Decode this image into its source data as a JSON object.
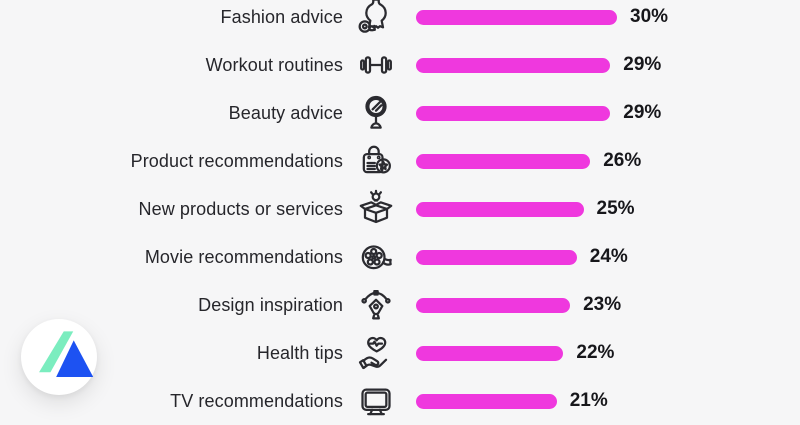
{
  "background_color": "#f6f6f7",
  "chart_data": {
    "type": "bar",
    "orientation": "horizontal",
    "title": "",
    "categories": [
      "Fashion advice",
      "Workout routines",
      "Beauty advice",
      "Product recommendations",
      "New products or services",
      "Movie recommendations",
      "Design inspiration",
      "Health tips",
      "TV recommendations"
    ],
    "values": [
      30,
      29,
      29,
      26,
      25,
      24,
      23,
      22,
      21
    ],
    "value_labels": [
      "30%",
      "29%",
      "29%",
      "26%",
      "25%",
      "24%",
      "23%",
      "22%",
      "21%"
    ],
    "unit": "%",
    "xlim": [
      0,
      30
    ],
    "grid": false,
    "legend": false,
    "bar_color": "#ef38de",
    "category_label_color": "#26262b",
    "value_label_color": "#17171b"
  },
  "rows": [
    {
      "label": "Fashion advice",
      "value": 30,
      "pct": "30%",
      "icon": "dress-form"
    },
    {
      "label": "Workout routines",
      "value": 29,
      "pct": "29%",
      "icon": "dumbbell"
    },
    {
      "label": "Beauty advice",
      "value": 29,
      "pct": "29%",
      "icon": "mirror"
    },
    {
      "label": "Product recommendations",
      "value": 26,
      "pct": "26%",
      "icon": "shopping-bag-star"
    },
    {
      "label": "New products or services",
      "value": 25,
      "pct": "25%",
      "icon": "box-lightbulb"
    },
    {
      "label": "Movie recommendations",
      "value": 24,
      "pct": "24%",
      "icon": "film-reel"
    },
    {
      "label": "Design inspiration",
      "value": 23,
      "pct": "23%",
      "icon": "pen-tool"
    },
    {
      "label": "Health tips",
      "value": 22,
      "pct": "22%",
      "icon": "hand-heart"
    },
    {
      "label": "TV recommendations",
      "value": 21,
      "pct": "21%",
      "icon": "tv"
    }
  ],
  "logo": {
    "name": "bdm-logo",
    "circle_color": "#ffffff",
    "triangle_green": "#7bedbf",
    "triangle_blue": "#1d52f2"
  }
}
